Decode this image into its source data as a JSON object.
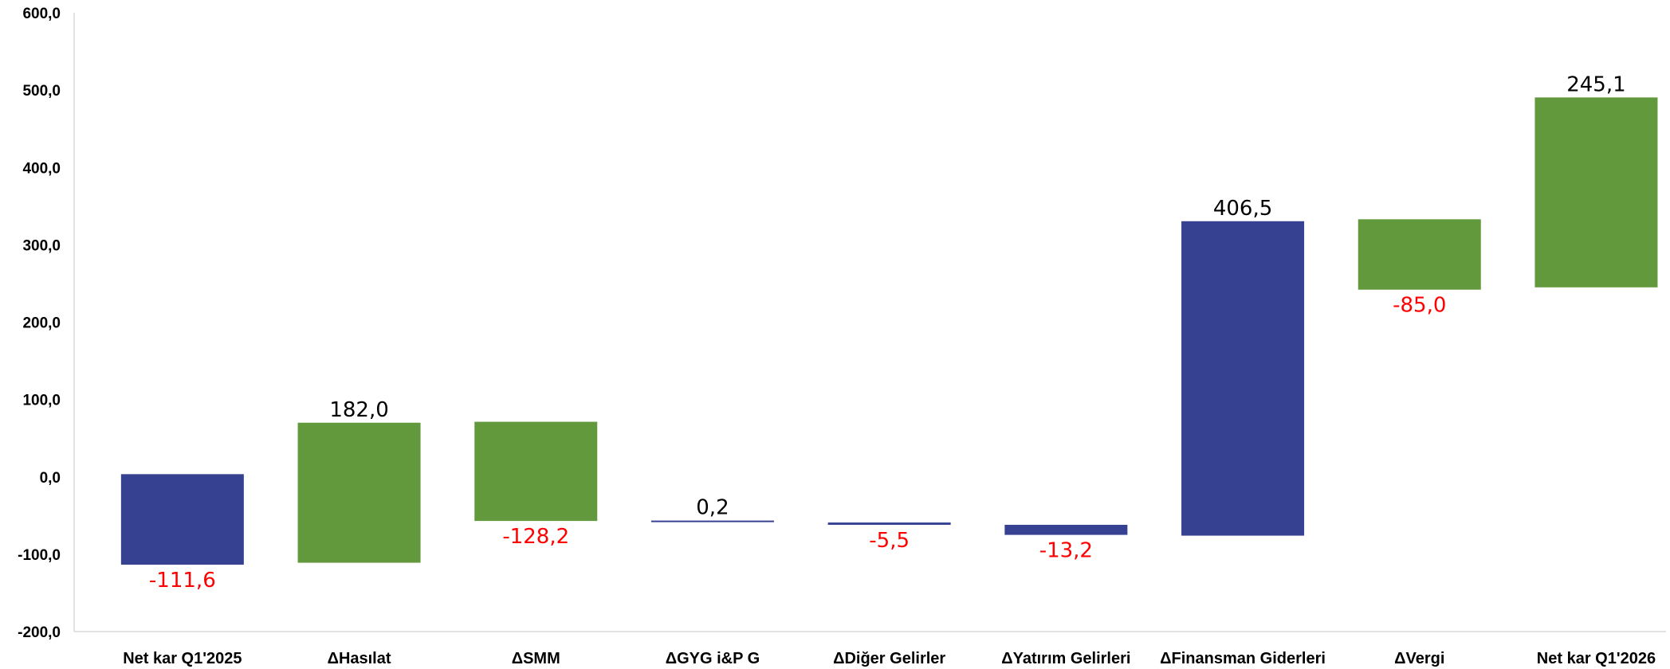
{
  "chart_data": {
    "type": "waterfall",
    "title": "",
    "xlabel": "",
    "ylabel": "",
    "ylim": [
      -200,
      600
    ],
    "yticks": [
      -200,
      -100,
      0,
      100,
      200,
      300,
      400,
      500,
      600
    ],
    "ytick_labels": [
      "-200,0",
      "-100,0",
      "0,0",
      "100,0",
      "200,0",
      "300,0",
      "400,0",
      "500,0",
      "600,0"
    ],
    "grid": false,
    "legend": "none",
    "colors": {
      "blue": "#364291",
      "green": "#63993D",
      "negative_label": "#FF0000",
      "positive_label": "#000000"
    },
    "categories": [
      "Net kar Q1'2025",
      "ΔHasılat",
      "ΔSMM",
      "ΔGYG i&P G",
      "ΔDiğer Gelirler",
      "ΔYatırım Gelirleri",
      "ΔFinansman Giderleri",
      "ΔVergi",
      "Net kar Q1'2026"
    ],
    "values": [
      -111.6,
      182.0,
      -128.2,
      0.2,
      -5.5,
      -13.2,
      406.5,
      -85.0,
      245.1
    ],
    "value_labels": [
      "-111,6",
      "182,0",
      "-128,2",
      "0,2",
      "-5,5",
      "-13,2",
      "406,5",
      "-85,0",
      "245,1"
    ],
    "bars": [
      {
        "low": -113.5,
        "high": 3.5,
        "color": "blue"
      },
      {
        "low": -111.0,
        "high": 70.0,
        "color": "green"
      },
      {
        "low": -57.0,
        "high": 71.2,
        "color": "green"
      },
      {
        "low": -58.5,
        "high": -56.5,
        "color": "blue"
      },
      {
        "low": -62.0,
        "high": -59.0,
        "color": "blue"
      },
      {
        "low": -75.0,
        "high": -62.0,
        "color": "blue"
      },
      {
        "low": -76.0,
        "high": 330.5,
        "color": "blue"
      },
      {
        "low": 242.0,
        "high": 333.0,
        "color": "green"
      },
      {
        "low": 245.0,
        "high": 490.5,
        "color": "green"
      }
    ]
  }
}
